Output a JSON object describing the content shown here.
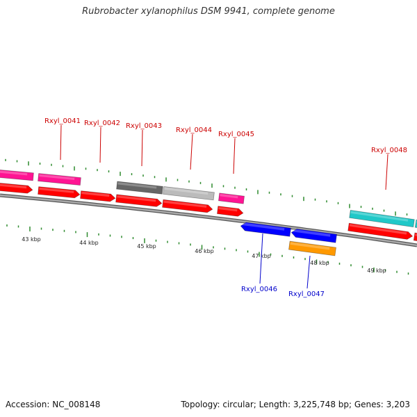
{
  "title": "Rubrobacter xylanophilus DSM 9941, complete genome",
  "footer": {
    "accession": "Accession: NC_008148",
    "stats": "Topology: circular; Length: 3,225,748 bp; Genes: 3,203"
  },
  "colors": {
    "backbone": "#888888",
    "forward_cds": "#ff0000",
    "reverse_cds": "#0000ff",
    "pink_feature": "#ff1493",
    "gray_dark": "#666666",
    "gray_light": "#bbbbbb",
    "cyan_feature": "#20c8c8",
    "orange_feature": "#ff9900",
    "tick": "#2e8b2e",
    "label_forward": "#cc0000",
    "label_reverse": "#0000cc"
  },
  "scale_labels": [
    "43 kbp",
    "44 kbp",
    "45 kbp",
    "46 kbp",
    "47 kbp",
    "48 kbp",
    "49 kbp"
  ],
  "gene_labels": [
    {
      "text": "Rxyl_0041",
      "strand": "forward"
    },
    {
      "text": "Rxyl_0042",
      "strand": "forward"
    },
    {
      "text": "Rxyl_0043",
      "strand": "forward"
    },
    {
      "text": "Rxyl_0044",
      "strand": "forward"
    },
    {
      "text": "Rxyl_0045",
      "strand": "forward"
    },
    {
      "text": "Rxyl_0048",
      "strand": "forward"
    },
    {
      "text": "Rxyl_0046",
      "strand": "reverse"
    },
    {
      "text": "Rxyl_0047",
      "strand": "reverse"
    }
  ]
}
